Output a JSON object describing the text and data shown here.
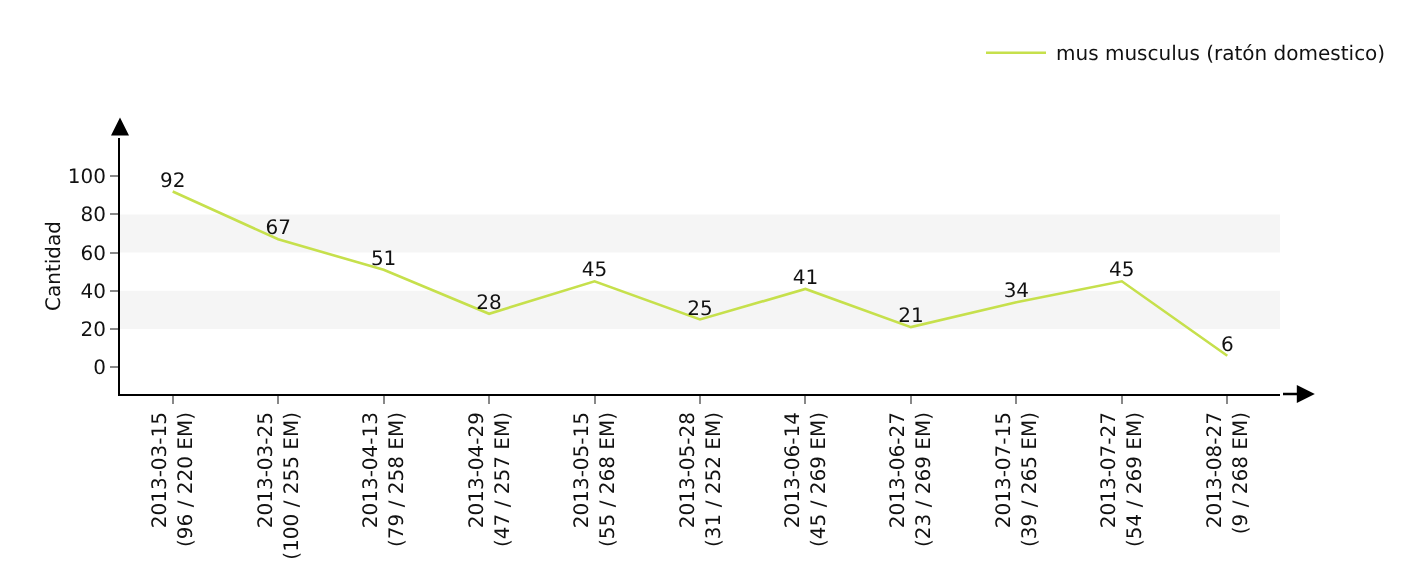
{
  "chart_data": {
    "type": "line",
    "ylabel": "Cantidad",
    "categories": [
      "2013-03-15\n(96 / 220 EM)",
      "2013-03-25\n(100 / 255 EM)",
      "2013-04-13\n(79 / 258 EM)",
      "2013-04-29\n(47 / 257 EM)",
      "2013-05-15\n(55 / 268 EM)",
      "2013-05-28\n(31 / 252 EM)",
      "2013-06-14\n(45 / 269 EM)",
      "2013-06-27\n(23 / 269 EM)",
      "2013-07-15\n(39 / 265 EM)",
      "2013-07-27\n(54 / 269 EM)",
      "2013-08-27\n(9 / 268 EM)"
    ],
    "series": [
      {
        "name": "mus musculus (ratón domestico)",
        "color": "#c6e04c",
        "values": [
          92,
          67,
          51,
          28,
          45,
          25,
          41,
          21,
          34,
          45,
          6
        ]
      }
    ],
    "bands": [
      {
        "axis": "y",
        "from": 20,
        "to": 40,
        "color": "#f5f5f5"
      },
      {
        "axis": "y",
        "from": 60,
        "to": 80,
        "color": "#f5f5f5"
      }
    ],
    "ylim": [
      -14,
      120
    ],
    "yticks": [
      0,
      20,
      40,
      60,
      80,
      100
    ],
    "legend": "top right",
    "marker": "none",
    "line_style": "solid",
    "data_labels": true
  }
}
